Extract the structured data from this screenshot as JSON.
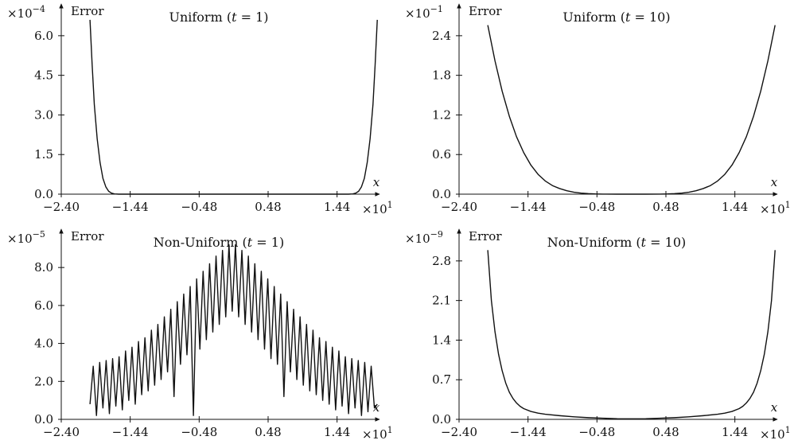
{
  "chart_data": [
    {
      "type": "line",
      "title": "Uniform (t = 1)",
      "title_prefix": "Uniform (",
      "title_var": "t",
      "title_suffix": " = 1)",
      "ylabel": "Error",
      "xlabel": "x",
      "y_scale_base": "×10",
      "y_scale_exp": "−4",
      "x_scale_base": "×10",
      "x_scale_exp": "1",
      "xticks": [
        "−2.40",
        "−1.44",
        "−0.48",
        "0.48",
        "1.44"
      ],
      "xtick_values": [
        -24.0,
        -14.4,
        -4.8,
        4.8,
        14.4
      ],
      "yticks": [
        "0.0",
        "1.5",
        "3.0",
        "4.5",
        "6.0"
      ],
      "ytick_values": [
        0.0,
        1.5,
        3.0,
        4.5,
        6.0
      ],
      "xlim": [
        -24.0,
        19.2
      ],
      "ylim": [
        0.0,
        6.9
      ],
      "series": [
        {
          "x": [
            -20.0,
            -19.7,
            -19.4,
            -19.0,
            -18.6,
            -18.2,
            -17.8,
            -17.4,
            -17.0,
            -16.6,
            -16.0,
            -10.0,
            0.0,
            10.0,
            16.0,
            16.6,
            17.0,
            17.4,
            17.8,
            18.2,
            18.6,
            19.0,
            19.4,
            19.7,
            20.0
          ],
          "y": [
            6.6,
            4.9,
            3.4,
            2.1,
            1.2,
            0.6,
            0.28,
            0.11,
            0.04,
            0.01,
            0.0,
            0.0,
            0.0,
            0.0,
            0.0,
            0.01,
            0.04,
            0.11,
            0.28,
            0.6,
            1.2,
            2.1,
            3.4,
            4.9,
            6.6
          ]
        }
      ]
    },
    {
      "type": "line",
      "title": "Uniform (t = 10)",
      "title_prefix": "Uniform (",
      "title_var": "t",
      "title_suffix": " = 10)",
      "ylabel": "Error",
      "xlabel": "x",
      "y_scale_base": "×10",
      "y_scale_exp": "−1",
      "x_scale_base": "×10",
      "x_scale_exp": "1",
      "xticks": [
        "−2.40",
        "−1.44",
        "−0.48",
        "0.48",
        "1.44"
      ],
      "xtick_values": [
        -24.0,
        -14.4,
        -4.8,
        4.8,
        14.4
      ],
      "yticks": [
        "0.0",
        "0.6",
        "1.2",
        "1.8",
        "2.4"
      ],
      "ytick_values": [
        0.0,
        0.6,
        1.2,
        1.8,
        2.4
      ],
      "xlim": [
        -24.0,
        19.2
      ],
      "ylim": [
        0.0,
        2.76
      ],
      "series": [
        {
          "x": [
            -20.0,
            -19.0,
            -18.0,
            -17.0,
            -16.0,
            -15.0,
            -14.0,
            -13.0,
            -12.0,
            -11.0,
            -10.0,
            -9.0,
            -8.0,
            -7.0,
            -6.0,
            -5.0,
            -4.0,
            -2.0,
            0.0,
            2.0,
            4.0,
            5.0,
            6.0,
            7.0,
            8.0,
            9.0,
            10.0,
            11.0,
            12.0,
            13.0,
            14.0,
            15.0,
            16.0,
            17.0,
            18.0,
            19.0,
            20.0
          ],
          "y": [
            2.56,
            2.02,
            1.56,
            1.18,
            0.87,
            0.63,
            0.44,
            0.3,
            0.2,
            0.13,
            0.085,
            0.052,
            0.03,
            0.016,
            0.008,
            0.003,
            0.001,
            0.0,
            0.0,
            0.0,
            0.001,
            0.003,
            0.008,
            0.016,
            0.03,
            0.052,
            0.085,
            0.13,
            0.2,
            0.3,
            0.44,
            0.63,
            0.87,
            1.18,
            1.56,
            2.02,
            2.56
          ]
        }
      ]
    },
    {
      "type": "line",
      "title": "Non-Uniform (t = 1)",
      "title_prefix": "Non-Uniform (",
      "title_var": "t",
      "title_suffix": " = 1)",
      "ylabel": "Error",
      "xlabel": "x",
      "y_scale_base": "×10",
      "y_scale_exp": "−5",
      "x_scale_base": "×10",
      "x_scale_exp": "1",
      "xticks": [
        "−2.40",
        "−1.44",
        "−0.48",
        "0.48",
        "1.44"
      ],
      "xtick_values": [
        -24.0,
        -14.4,
        -4.8,
        4.8,
        14.4
      ],
      "yticks": [
        "0.0",
        "2.0",
        "4.0",
        "6.0",
        "8.0"
      ],
      "ytick_values": [
        0.0,
        2.0,
        4.0,
        6.0,
        8.0
      ],
      "xlim": [
        -24.0,
        19.2
      ],
      "ylim": [
        0.0,
        9.6
      ],
      "series": [
        {
          "x": [
            -20.0,
            -19.55,
            -19.1,
            -18.65,
            -18.2,
            -17.75,
            -17.3,
            -16.85,
            -16.4,
            -15.95,
            -15.5,
            -15.05,
            -14.6,
            -14.15,
            -13.7,
            -13.25,
            -12.8,
            -12.35,
            -11.9,
            -11.45,
            -11.0,
            -10.55,
            -10.1,
            -9.65,
            -9.2,
            -8.75,
            -8.3,
            -7.85,
            -7.4,
            -6.95,
            -6.5,
            -6.05,
            -5.6,
            -5.15,
            -4.7,
            -4.25,
            -3.8,
            -3.35,
            -2.9,
            -2.45,
            -2.0,
            -1.55,
            -1.1,
            -0.65,
            -0.2,
            0.25,
            0.7,
            1.15,
            1.6,
            2.05,
            2.5,
            2.95,
            3.4,
            3.85,
            4.3,
            4.75,
            5.2,
            5.65,
            6.1,
            6.55,
            7.0,
            7.45,
            7.9,
            8.35,
            8.8,
            9.25,
            9.7,
            10.15,
            10.6,
            11.05,
            11.5,
            11.95,
            12.4,
            12.85,
            13.3,
            13.75,
            14.2,
            14.65,
            15.1,
            15.55,
            16.0,
            16.45,
            16.9,
            17.35,
            17.8,
            18.25,
            18.7,
            19.15,
            19.6,
            20.0
          ],
          "y": [
            0.8,
            2.8,
            0.2,
            3.0,
            0.6,
            3.1,
            0.3,
            3.2,
            0.7,
            3.3,
            0.5,
            3.6,
            1.0,
            3.8,
            0.8,
            4.1,
            1.3,
            4.3,
            1.5,
            4.7,
            1.8,
            5.0,
            2.1,
            5.4,
            2.5,
            5.8,
            1.2,
            6.2,
            2.9,
            6.6,
            3.4,
            7.0,
            0.2,
            7.4,
            3.7,
            7.8,
            4.2,
            8.2,
            4.6,
            8.6,
            5.0,
            8.9,
            5.4,
            9.2,
            5.7,
            9.2,
            5.4,
            8.9,
            5.0,
            8.6,
            4.6,
            8.2,
            4.2,
            7.8,
            3.7,
            7.4,
            3.2,
            7.0,
            2.9,
            6.6,
            1.2,
            6.2,
            2.5,
            5.8,
            2.1,
            5.4,
            1.8,
            5.0,
            1.5,
            4.7,
            1.3,
            4.3,
            1.0,
            4.1,
            0.8,
            3.8,
            0.5,
            3.6,
            0.7,
            3.3,
            0.3,
            3.2,
            0.6,
            3.1,
            0.2,
            3.0,
            0.4,
            2.8,
            0.6,
            0.8
          ]
        }
      ]
    },
    {
      "type": "line",
      "title": "Non-Uniform (t = 10)",
      "title_prefix": "Non-Uniform (",
      "title_var": "t",
      "title_suffix": " = 10)",
      "ylabel": "Error",
      "xlabel": "x",
      "y_scale_base": "×10",
      "y_scale_exp": "−9",
      "x_scale_base": "×10",
      "x_scale_exp": "1",
      "xticks": [
        "−2.40",
        "−1.44",
        "−0.48",
        "0.48",
        "1.44"
      ],
      "xtick_values": [
        -24.0,
        -14.4,
        -4.8,
        4.8,
        14.4
      ],
      "yticks": [
        "0.0",
        "0.7",
        "1.4",
        "2.1",
        "2.8"
      ],
      "ytick_values": [
        0.0,
        0.7,
        1.4,
        2.1,
        2.8
      ],
      "xlim": [
        -24.0,
        19.2
      ],
      "ylim": [
        0.0,
        3.22
      ],
      "series": [
        {
          "x": [
            -20.0,
            -19.5,
            -19.0,
            -18.5,
            -18.0,
            -17.5,
            -17.0,
            -16.5,
            -16.0,
            -15.5,
            -15.0,
            -14.0,
            -13.0,
            -12.0,
            -10.0,
            -8.0,
            -6.0,
            -4.0,
            -2.0,
            0.0,
            2.0,
            4.0,
            6.0,
            8.0,
            10.0,
            12.0,
            13.0,
            14.0,
            15.0,
            15.5,
            16.0,
            16.5,
            17.0,
            17.5,
            18.0,
            18.5,
            19.0,
            19.5,
            20.0
          ],
          "y": [
            2.99,
            2.1,
            1.55,
            1.15,
            0.86,
            0.64,
            0.48,
            0.37,
            0.29,
            0.23,
            0.19,
            0.14,
            0.11,
            0.09,
            0.065,
            0.045,
            0.03,
            0.02,
            0.012,
            0.01,
            0.012,
            0.02,
            0.03,
            0.045,
            0.065,
            0.09,
            0.11,
            0.14,
            0.19,
            0.23,
            0.29,
            0.37,
            0.48,
            0.64,
            0.86,
            1.15,
            1.55,
            2.1,
            2.99
          ]
        }
      ]
    }
  ]
}
